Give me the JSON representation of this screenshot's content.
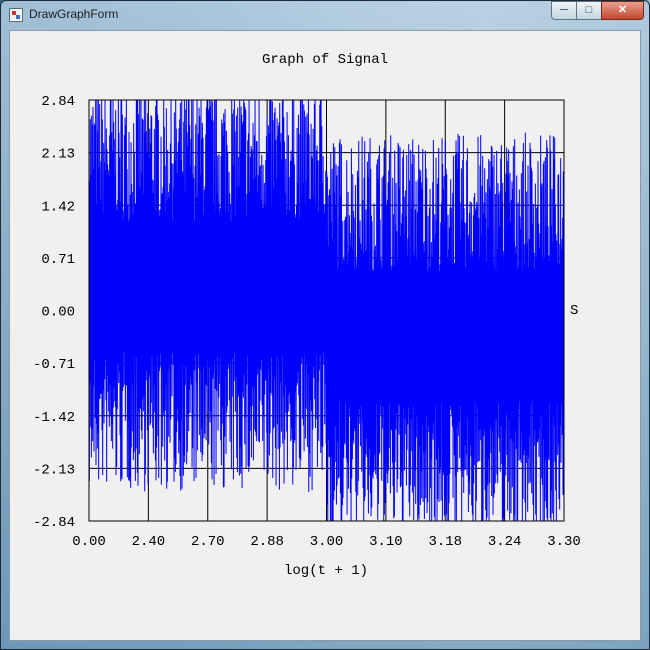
{
  "window": {
    "title": "DrawGraphForm",
    "icon": "form-icon",
    "controls": {
      "minimize": "minimize-icon",
      "maximize": "maximize-icon",
      "close": "close-icon"
    }
  },
  "chart_data": {
    "type": "line",
    "title": "Graph of Signal",
    "xlabel": "log(t + 1)",
    "ylabel": "S",
    "x_tick_labels": [
      "0.00",
      "2.40",
      "2.70",
      "2.88",
      "3.00",
      "3.10",
      "3.18",
      "3.24",
      "3.30"
    ],
    "y_tick_labels": [
      "2.84",
      "2.13",
      "1.42",
      "0.71",
      "0.00",
      "-0.71",
      "-1.42",
      "-2.13",
      "-2.84"
    ],
    "x_scale": "log",
    "ylim": [
      -2.84,
      2.84
    ],
    "grid": true,
    "legend": "none",
    "series": [
      {
        "color": "#0000ff",
        "description": "dense oscillating signal; large positive values before t≈1000, predominantly negative after",
        "segments": [
          {
            "t_start": 0,
            "t_end": 1000,
            "envelope_min": -2.2,
            "envelope_max": 2.84
          },
          {
            "t_start": 1000,
            "t_end": 2000,
            "envelope_min": -2.84,
            "envelope_max": 2.15
          }
        ]
      }
    ]
  }
}
